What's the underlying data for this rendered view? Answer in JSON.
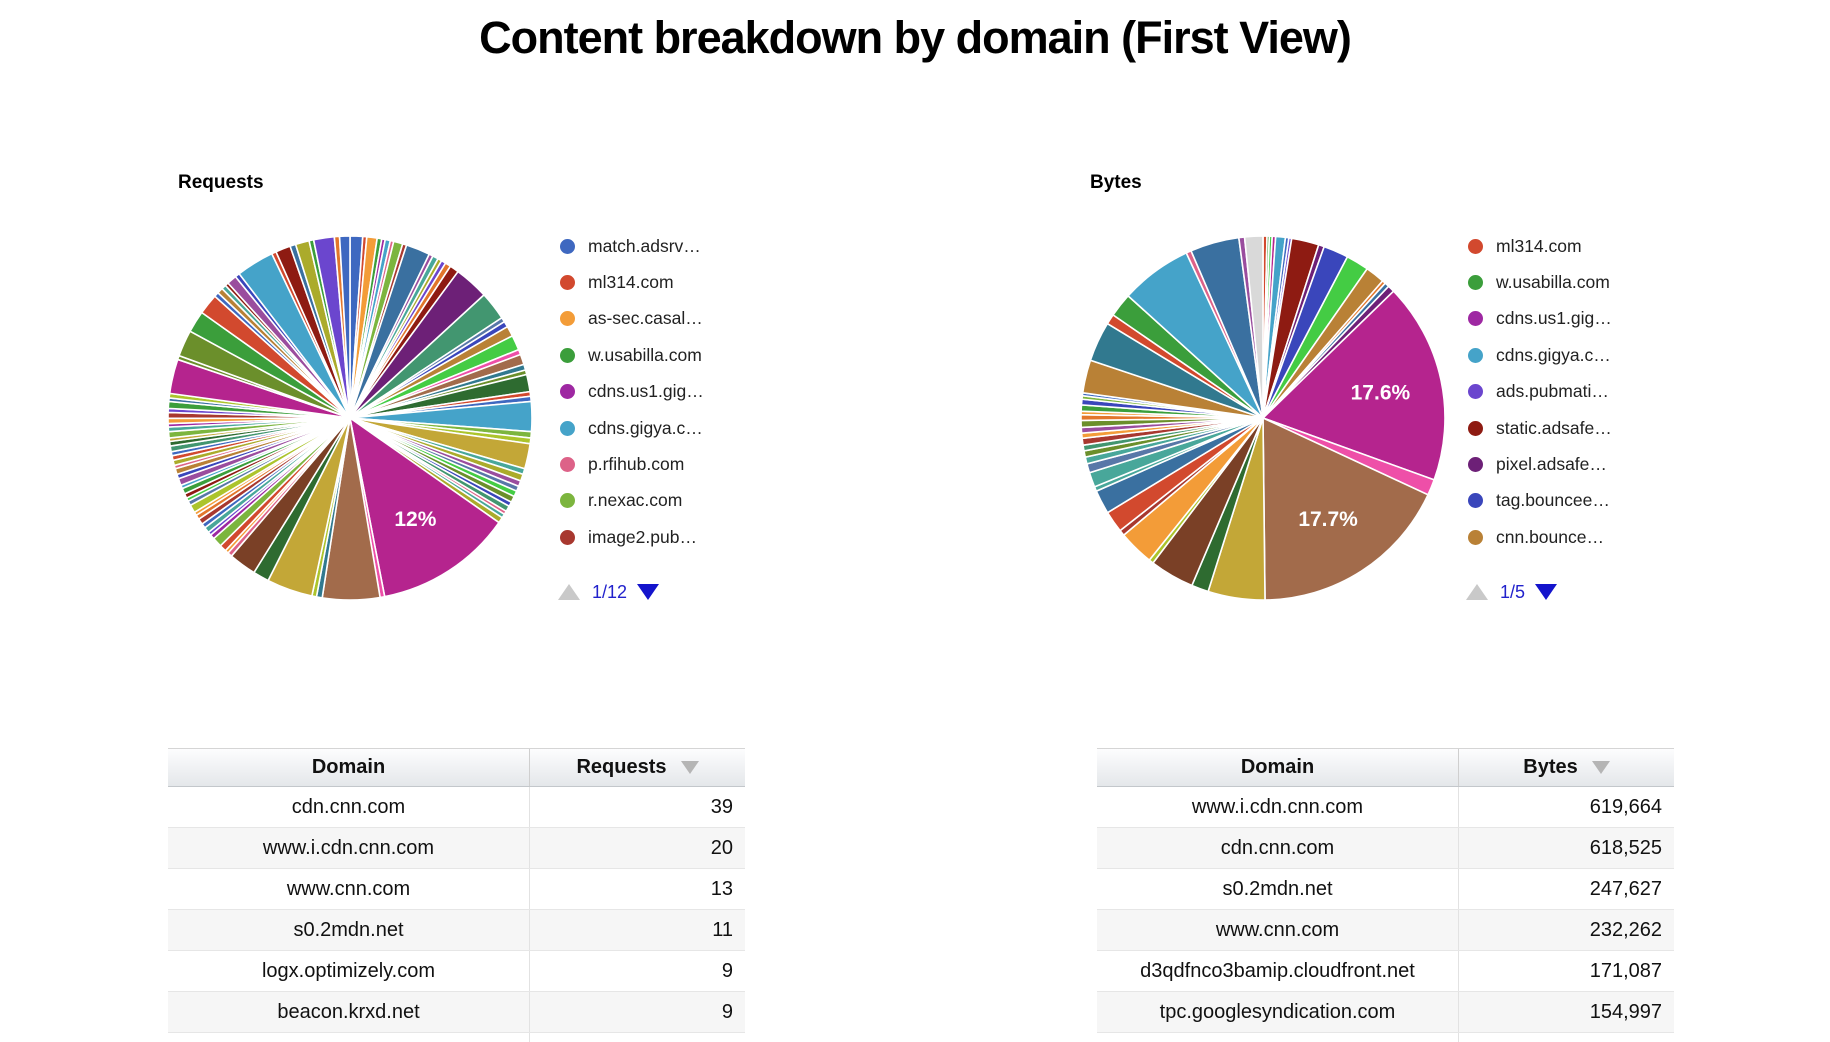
{
  "title": "Content breakdown by domain (First View)",
  "palette": {
    "bl": "#3E68C0",
    "rd": "#D2492E",
    "or": "#F39C38",
    "gr": "#3B9E3B",
    "pu": "#9E28A2",
    "lb": "#45A3C9",
    "pk": "#DD6288",
    "lg": "#7CB53E",
    "dr": "#A8382F",
    "sb": "#3A70A0",
    "p2": "#9A4D9E",
    "te": "#48A79A",
    "ol": "#ABAB2B",
    "vi": "#6B46CE",
    "o2": "#E2762B",
    "mr": "#8E1B12",
    "dp": "#6D2077",
    "sg": "#429670",
    "sl": "#5877A8",
    "in": "#3A46BB",
    "tn": "#B98136",
    "bg": "#44CC44",
    "mg": "#B5248E",
    "bp": "#EE4FA8",
    "br": "#A26B4B",
    "yg": "#ACC42C",
    "tb": "#31798F",
    "og": "#6B8F2B",
    "dy": "#C3A737",
    "dg": "#2E6B30",
    "db": "#7A4026",
    "gy": "#D9D9D9"
  },
  "pagers": {
    "requests": "1/12",
    "bytes": "1/5"
  },
  "chart_data": [
    {
      "type": "pie",
      "title": "Requests",
      "labeled_values": [
        {
          "label": "12%",
          "color": "#B5248E"
        }
      ],
      "legend": [
        "match.adsrv…",
        "ml314.com",
        "as-sec.casal…",
        "w.usabilla.com",
        "cdns.us1.gig…",
        "cdns.gigya.c…",
        "p.rfihub.com",
        "r.nexac.com",
        "image2.pub…"
      ],
      "legend_colors": [
        "#3E68C0",
        "#D2492E",
        "#F39C38",
        "#3B9E3B",
        "#9E28A2",
        "#45A3C9",
        "#DD6288",
        "#7CB53E",
        "#A8382F"
      ],
      "pager": "1/12",
      "slices": [
        [
          1.1,
          "bl"
        ],
        [
          0.35,
          "rd"
        ],
        [
          0.9,
          "or"
        ],
        [
          0.4,
          "gr"
        ],
        [
          0.3,
          "pu"
        ],
        [
          0.45,
          "lb"
        ],
        [
          0.3,
          "pk"
        ],
        [
          0.8,
          "lg"
        ],
        [
          0.35,
          "dr"
        ],
        [
          2.1,
          "sb"
        ],
        [
          0.35,
          "p2"
        ],
        [
          0.5,
          "te"
        ],
        [
          0.35,
          "ol"
        ],
        [
          0.4,
          "vi"
        ],
        [
          0.5,
          "o2"
        ],
        [
          0.8,
          "mr"
        ],
        [
          3.0,
          "dp"
        ],
        [
          2.5,
          "sg"
        ],
        [
          0.4,
          "sl"
        ],
        [
          0.5,
          "in"
        ],
        [
          0.9,
          "tn"
        ],
        [
          1.3,
          "bg"
        ],
        [
          0.45,
          "bp"
        ],
        [
          0.9,
          "br"
        ],
        [
          0.5,
          "tb"
        ],
        [
          0.4,
          "og"
        ],
        [
          1.5,
          "dg"
        ],
        [
          0.4,
          "rd"
        ],
        [
          0.45,
          "bl"
        ],
        [
          2.6,
          "lb"
        ],
        [
          0.55,
          "lg"
        ],
        [
          0.5,
          "yg"
        ],
        [
          2.2,
          "dy"
        ],
        [
          0.5,
          "te"
        ],
        [
          0.6,
          "ol"
        ],
        [
          0.5,
          "p2"
        ],
        [
          0.45,
          "sl"
        ],
        [
          0.5,
          "bg"
        ],
        [
          0.55,
          "og"
        ],
        [
          0.4,
          "in"
        ],
        [
          0.5,
          "sg"
        ],
        [
          0.3,
          "pk"
        ],
        [
          0.35,
          "te"
        ],
        [
          0.5,
          "ol"
        ],
        [
          12.0,
          "mg",
          "12%"
        ],
        [
          0.4,
          "bp"
        ],
        [
          5.0,
          "br"
        ],
        [
          0.5,
          "tb"
        ],
        [
          0.4,
          "yg"
        ],
        [
          4.0,
          "dy"
        ],
        [
          1.4,
          "dg"
        ],
        [
          2.4,
          "db"
        ],
        [
          0.4,
          "pk"
        ],
        [
          0.3,
          "or"
        ],
        [
          0.6,
          "rd"
        ],
        [
          0.85,
          "lg"
        ],
        [
          0.4,
          "pu"
        ],
        [
          0.3,
          "vi"
        ],
        [
          0.5,
          "te"
        ],
        [
          0.4,
          "bl"
        ],
        [
          0.5,
          "dr"
        ],
        [
          0.4,
          "o2"
        ],
        [
          0.3,
          "or"
        ],
        [
          0.7,
          "yg"
        ],
        [
          0.4,
          "sl"
        ],
        [
          0.3,
          "bg"
        ],
        [
          0.4,
          "mr"
        ],
        [
          0.5,
          "gr"
        ],
        [
          0.3,
          "lb"
        ],
        [
          0.6,
          "p2"
        ],
        [
          0.4,
          "in"
        ],
        [
          0.5,
          "tn"
        ],
        [
          0.3,
          "pk"
        ],
        [
          0.45,
          "ol"
        ],
        [
          0.4,
          "rd"
        ],
        [
          0.35,
          "bl"
        ],
        [
          0.5,
          "sg"
        ],
        [
          0.4,
          "dg"
        ],
        [
          0.3,
          "dy"
        ],
        [
          0.55,
          "lg"
        ],
        [
          0.4,
          "te"
        ],
        [
          0.3,
          "pu"
        ],
        [
          0.45,
          "or"
        ],
        [
          0.5,
          "dr"
        ],
        [
          0.35,
          "vi"
        ],
        [
          0.6,
          "gr"
        ],
        [
          0.3,
          "sb"
        ],
        [
          0.4,
          "yg"
        ],
        [
          3.0,
          "mg"
        ],
        [
          0.35,
          "og"
        ],
        [
          2.3,
          "og"
        ],
        [
          1.9,
          "gr"
        ],
        [
          1.8,
          "rd"
        ],
        [
          0.4,
          "bl"
        ],
        [
          0.5,
          "tn"
        ],
        [
          0.4,
          "te"
        ],
        [
          0.3,
          "mr"
        ],
        [
          0.85,
          "p2"
        ],
        [
          0.4,
          "in"
        ],
        [
          3.3,
          "lb"
        ],
        [
          0.4,
          "rd"
        ],
        [
          1.3,
          "mr"
        ],
        [
          0.5,
          "sb"
        ],
        [
          1.2,
          "ol"
        ],
        [
          0.4,
          "gr"
        ],
        [
          1.8,
          "vi"
        ],
        [
          0.45,
          "o2"
        ],
        [
          0.9,
          "bl"
        ]
      ]
    },
    {
      "type": "pie",
      "title": "Bytes",
      "labeled_values": [
        {
          "label": "17.6%",
          "color": "#B5248E"
        },
        {
          "label": "17.7%",
          "color": "#A26B4B"
        }
      ],
      "legend": [
        "ml314.com",
        "w.usabilla.com",
        "cdns.us1.gig…",
        "cdns.gigya.c…",
        "ads.pubmati…",
        "static.adsafe…",
        "pixel.adsafe…",
        "tag.bouncee…",
        "cnn.bounce…"
      ],
      "legend_colors": [
        "#D2492E",
        "#3B9E3B",
        "#9E28A2",
        "#45A3C9",
        "#6B46CE",
        "#8E1B12",
        "#6D2077",
        "#3A46BB",
        "#B98136"
      ],
      "pager": "1/5",
      "slices": [
        [
          0.35,
          "rd"
        ],
        [
          0.2,
          "gr"
        ],
        [
          0.25,
          "bg"
        ],
        [
          0.3,
          "mg"
        ],
        [
          0.85,
          "lb"
        ],
        [
          0.3,
          "bl"
        ],
        [
          0.25,
          "vi"
        ],
        [
          2.4,
          "mr"
        ],
        [
          0.5,
          "dp"
        ],
        [
          2.2,
          "in"
        ],
        [
          2.0,
          "bg"
        ],
        [
          1.7,
          "tn"
        ],
        [
          0.3,
          "o2"
        ],
        [
          0.4,
          "sb"
        ],
        [
          0.6,
          "dp"
        ],
        [
          17.6,
          "mg",
          "17.6%"
        ],
        [
          1.4,
          "bp"
        ],
        [
          17.7,
          "br",
          "17.7%"
        ],
        [
          5.0,
          "dy"
        ],
        [
          1.5,
          "dg"
        ],
        [
          3.9,
          "db"
        ],
        [
          0.4,
          "yg"
        ],
        [
          3.1,
          "or"
        ],
        [
          0.5,
          "dr"
        ],
        [
          1.9,
          "rd"
        ],
        [
          2.1,
          "sb"
        ],
        [
          0.4,
          "te"
        ],
        [
          1.3,
          "te"
        ],
        [
          0.8,
          "sl"
        ],
        [
          0.6,
          "te"
        ],
        [
          0.55,
          "og"
        ],
        [
          0.5,
          "sg"
        ],
        [
          0.6,
          "dr"
        ],
        [
          0.45,
          "or"
        ],
        [
          0.5,
          "p2"
        ],
        [
          0.6,
          "og"
        ],
        [
          0.5,
          "o2"
        ],
        [
          0.3,
          "or"
        ],
        [
          0.55,
          "gr"
        ],
        [
          0.5,
          "in"
        ],
        [
          0.3,
          "lg"
        ],
        [
          0.25,
          "bl"
        ],
        [
          2.9,
          "tn"
        ],
        [
          3.5,
          "tb"
        ],
        [
          0.9,
          "rd"
        ],
        [
          2.1,
          "gr"
        ],
        [
          6.3,
          "lb"
        ],
        [
          0.45,
          "pk"
        ],
        [
          4.3,
          "sb"
        ],
        [
          0.5,
          "p2"
        ],
        [
          1.6,
          "gy"
        ]
      ]
    }
  ],
  "tables": {
    "requests": {
      "headers": [
        "Domain",
        "Requests"
      ],
      "rows": [
        [
          "cdn.cnn.com",
          "39"
        ],
        [
          "www.i.cdn.cnn.com",
          "20"
        ],
        [
          "www.cnn.com",
          "13"
        ],
        [
          "s0.2mdn.net",
          "11"
        ],
        [
          "logx.optimizely.com",
          "9"
        ],
        [
          "beacon.krxd.net",
          "9"
        ]
      ]
    },
    "bytes": {
      "headers": [
        "Domain",
        "Bytes"
      ],
      "rows": [
        [
          "www.i.cdn.cnn.com",
          "619,664"
        ],
        [
          "cdn.cnn.com",
          "618,525"
        ],
        [
          "s0.2mdn.net",
          "247,627"
        ],
        [
          "www.cnn.com",
          "232,262"
        ],
        [
          "d3qdfnco3bamip.cloudfront.net",
          "171,087"
        ],
        [
          "tpc.googlesyndication.com",
          "154,997"
        ]
      ]
    }
  }
}
